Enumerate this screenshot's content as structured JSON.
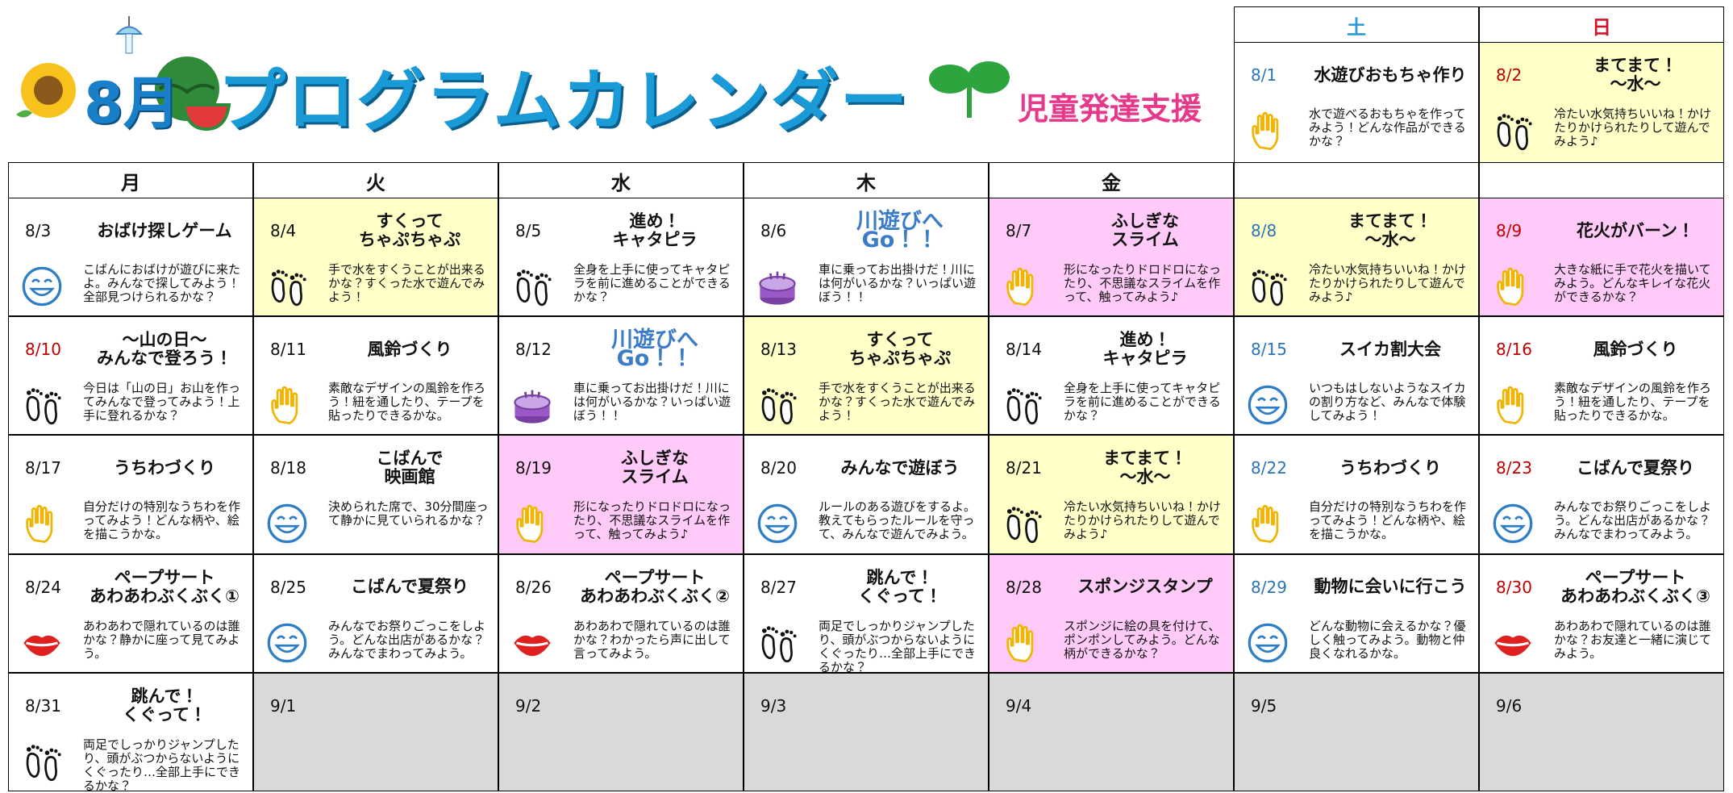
{
  "header": {
    "month": "8月",
    "title": "プログラムカレンダー",
    "subtitle": "児童発達支援"
  },
  "calendar": {
    "weekdays": [
      "月",
      "火",
      "水",
      "木",
      "金",
      "土",
      "日"
    ],
    "weeks": [
      [
        {
          "date": "8/1",
          "title": "水遊びおもちゃ作り",
          "text": "水で遊べるおもちゃを作ってみよう！どんな作品ができるかな？"
        },
        {
          "date": "8/2",
          "title": "まてまて！\n〜水〜",
          "text": "冷たい水気持ちいいね！かけたりかけられたりして遊んでみよう♪"
        }
      ],
      [
        {
          "date": "8/3",
          "title": "おばけ探しゲーム",
          "text": "こばんにおばけが遊びに来たよ。みんなで探してみよう！全部見つけられるかな？"
        },
        {
          "date": "8/4",
          "title": "すくって\nちゃぷちゃぷ",
          "text": "手で水をすくうことが出来るかな？すくった水で遊んでみよう！"
        },
        {
          "date": "8/5",
          "title": "進め！\nキャタピラ",
          "text": "全身を上手に使ってキャタピラを前に進めることができるかな？"
        },
        {
          "date": "8/6",
          "title": "川遊びへGo！！",
          "text": "車に乗ってお出掛けだ！川には何がいるかな？いっぱい遊ぼう！！"
        },
        {
          "date": "8/7",
          "title": "ふしぎな\nスライム",
          "text": "形になったりドロドロになったり、不思議なスライムを作って、触ってみよう♪"
        },
        {
          "date": "8/8",
          "title": "まてまて！\n〜水〜",
          "text": "冷たい水気持ちいいね！かけたりかけられたりして遊んでみよう♪"
        },
        {
          "date": "8/9",
          "title": "花火がバーン！",
          "text": "大きな紙に手で花火を描いてみよう。どんなキレイな花火ができるかな？"
        }
      ],
      [
        {
          "date": "8/10",
          "title": "〜山の日〜\nみんなで登ろう！",
          "text": "今日は「山の日」お山を作ってみんなで登ってみよう！上手に登れるかな？"
        },
        {
          "date": "8/11",
          "title": "風鈴づくり",
          "text": "素敵なデザインの風鈴を作ろう！紐を通したり、テープを貼ったりできるかな。"
        },
        {
          "date": "8/12",
          "title": "川遊びへGo！！",
          "text": "車に乗ってお出掛けだ！川には何がいるかな？いっぱい遊ぼう！！"
        },
        {
          "date": "8/13",
          "title": "すくって\nちゃぷちゃぷ",
          "text": "手で水をすくうことが出来るかな？すくった水で遊んでみよう！"
        },
        {
          "date": "8/14",
          "title": "進め！\nキャタピラ",
          "text": "全身を上手に使ってキャタピラを前に進めることができるかな？"
        },
        {
          "date": "8/15",
          "title": "スイカ割大会",
          "text": "いつもはしないようなスイカの割り方など、みんなで体験してみよう！"
        },
        {
          "date": "8/16",
          "title": "風鈴づくり",
          "text": "素敵なデザインの風鈴を作ろう！紐を通したり、テープを貼ったりできるかな。"
        }
      ],
      [
        {
          "date": "8/17",
          "title": "うちわづくり",
          "text": "自分だけの特別なうちわを作ってみよう！どんな柄や、絵を描こうかな。"
        },
        {
          "date": "8/18",
          "title": "こばんで\n映画館",
          "text": "決められた席で、30分間座って静かに見ていられるかな？"
        },
        {
          "date": "8/19",
          "title": "ふしぎな\nスライム",
          "text": "形になったりドロドロになったり、不思議なスライムを作って、触ってみよう♪"
        },
        {
          "date": "8/20",
          "title": "みんなで遊ぼう",
          "text": "ルールのある遊びをするよ。教えてもらったルールを守って、みんなで遊んでみよう。"
        },
        {
          "date": "8/21",
          "title": "まてまて！\n〜水〜",
          "text": "冷たい水気持ちいいね！かけたりかけられたりして遊んでみよう♪"
        },
        {
          "date": "8/22",
          "title": "うちわづくり",
          "text": "自分だけの特別なうちわを作ってみよう！どんな柄や、絵を描こうかな。"
        },
        {
          "date": "8/23",
          "title": "こばんで夏祭り",
          "text": "みんなでお祭りごっこをしよう。どんな出店があるかな？みんなでまわってみよう。"
        }
      ],
      [
        {
          "date": "8/24",
          "title": "ペープサート\nあわあわぶくぶく①",
          "text": "あわあわで隠れているのは誰かな？静かに座って見てみよう。"
        },
        {
          "date": "8/25",
          "title": "こばんで夏祭り",
          "text": "みんなでお祭りごっこをしよう。どんな出店があるかな？みんなでまわってみよう。"
        },
        {
          "date": "8/26",
          "title": "ペープサート\nあわあわぶくぶく②",
          "text": "あわあわで隠れているのは誰かな？わかったら声に出して言ってみよう。"
        },
        {
          "date": "8/27",
          "title": "跳んで！\nくぐって！",
          "text": "両足でしっかりジャンプしたり、頭がぶつからないようにくぐったり…全部上手にできるかな？"
        },
        {
          "date": "8/28",
          "title": "スポンジスタンプ",
          "text": "スポンジに絵の具を付けて、ポンポンしてみよう。どんな柄ができるかな？"
        },
        {
          "date": "8/29",
          "title": "動物に会いに行こう",
          "text": "どんな動物に会えるかな？優しく触ってみよう。動物と仲良くなれるかな。"
        },
        {
          "date": "8/30",
          "title": "ペープサート\nあわあわぶくぶく③",
          "text": "あわあわで隠れているのは誰かな？お友達と一緒に演じてみよう。"
        }
      ],
      [
        {
          "date": "8/31",
          "title": "跳んで！\nくぐって！",
          "text": "両足でしっかりジャンプしたり、頭がぶつからないようにくぐったり…全部上手にできるかな？"
        },
        {
          "date": "9/1"
        },
        {
          "date": "9/2"
        },
        {
          "date": "9/3"
        },
        {
          "date": "9/4"
        },
        {
          "date": "9/5"
        },
        {
          "date": "9/6"
        }
      ]
    ]
  }
}
